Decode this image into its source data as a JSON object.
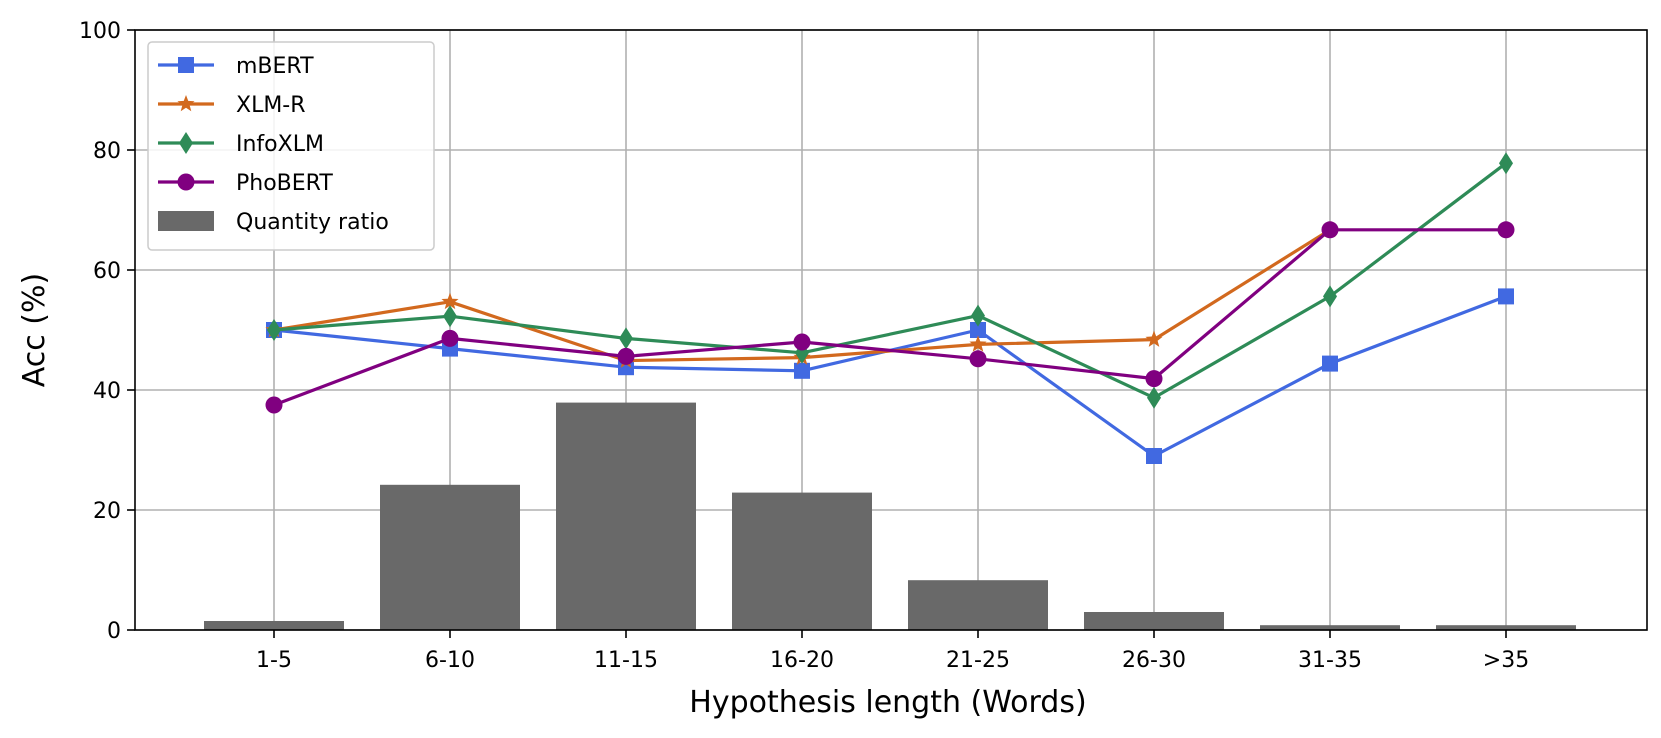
{
  "chart_data": {
    "type": "bar+line",
    "title": "",
    "xlabel": "Hypothesis length (Words)",
    "ylabel": "Acc (%)",
    "ylim": [
      0,
      100
    ],
    "yticks": [
      0,
      20,
      40,
      60,
      80,
      100
    ],
    "grid": true,
    "legend_position": "top-left",
    "categories": [
      "1-5",
      "6-10",
      "11-15",
      "16-20",
      "21-25",
      "26-30",
      "31-35",
      ">35"
    ],
    "bars": {
      "name": "Quantity ratio",
      "color": "#696969",
      "values": [
        1.5,
        24.2,
        37.9,
        22.9,
        8.3,
        3.0,
        0.8,
        0.8
      ]
    },
    "series": [
      {
        "name": "mBERT",
        "color": "#4169e1",
        "marker": "square",
        "values": [
          50.0,
          46.9,
          43.8,
          43.2,
          50.0,
          29.0,
          44.4,
          55.6
        ]
      },
      {
        "name": "XLM-R",
        "color": "#d2691e",
        "marker": "star",
        "values": [
          50.0,
          54.7,
          44.9,
          45.4,
          47.6,
          48.4,
          66.7,
          null
        ]
      },
      {
        "name": "InfoXLM",
        "color": "#2e8b57",
        "marker": "diamond",
        "values": [
          50.0,
          52.3,
          48.6,
          46.2,
          52.4,
          38.7,
          55.6,
          77.8
        ]
      },
      {
        "name": "PhoBERT",
        "color": "#800080",
        "marker": "circle",
        "values": [
          37.5,
          48.6,
          45.6,
          48.0,
          45.2,
          41.9,
          66.7,
          66.7
        ]
      }
    ]
  }
}
